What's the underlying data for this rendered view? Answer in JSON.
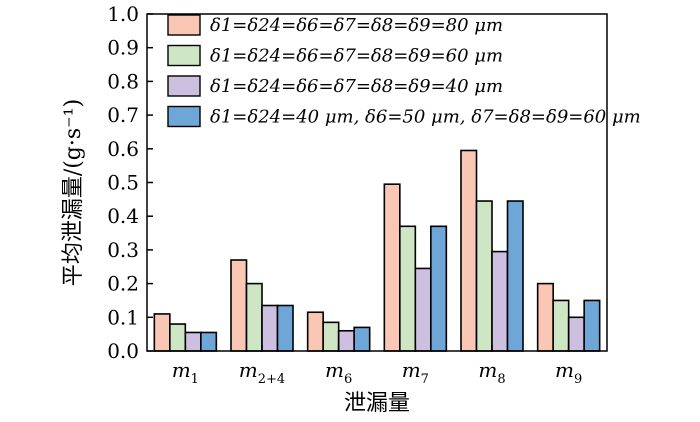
{
  "chart_data": {
    "type": "bar",
    "categories": [
      "m1",
      "m2+4",
      "m6",
      "m7",
      "m8",
      "m9"
    ],
    "category_labels": [
      {
        "base": "m",
        "sub": "1"
      },
      {
        "base": "m",
        "sub": "2+4"
      },
      {
        "base": "m",
        "sub": "6"
      },
      {
        "base": "m",
        "sub": "7"
      },
      {
        "base": "m",
        "sub": "8"
      },
      {
        "base": "m",
        "sub": "9"
      }
    ],
    "series": [
      {
        "name": "δ1=δ24=δ6=δ7=δ8=δ9=80 μm",
        "color": "#f9c7b4",
        "values": [
          0.11,
          0.27,
          0.115,
          0.495,
          0.595,
          0.2
        ]
      },
      {
        "name": "δ1=δ24=δ6=δ7=δ8=δ9=60 μm",
        "color": "#cfe6c4",
        "values": [
          0.08,
          0.2,
          0.085,
          0.37,
          0.445,
          0.15
        ]
      },
      {
        "name": "δ1=δ24=δ6=δ7=δ8=δ9=40 μm",
        "color": "#cdbfe0",
        "values": [
          0.055,
          0.135,
          0.06,
          0.245,
          0.295,
          0.1
        ]
      },
      {
        "name": "δ1=δ24=40 μm, δ6=50 μm, δ7=δ8=δ9=60 μm",
        "color": "#6fa6d8",
        "values": [
          0.055,
          0.135,
          0.07,
          0.37,
          0.445,
          0.15
        ]
      }
    ],
    "xlabel": "泄漏量",
    "ylabel": "平均泄漏量/(g·s⁻¹)",
    "ylim": [
      0,
      1.0
    ],
    "yticks": [
      "0.0",
      "0.1",
      "0.2",
      "0.3",
      "0.4",
      "0.5",
      "0.6",
      "0.7",
      "0.8",
      "0.9",
      "1.0"
    ],
    "grid": false,
    "legend_position": "top-right"
  }
}
